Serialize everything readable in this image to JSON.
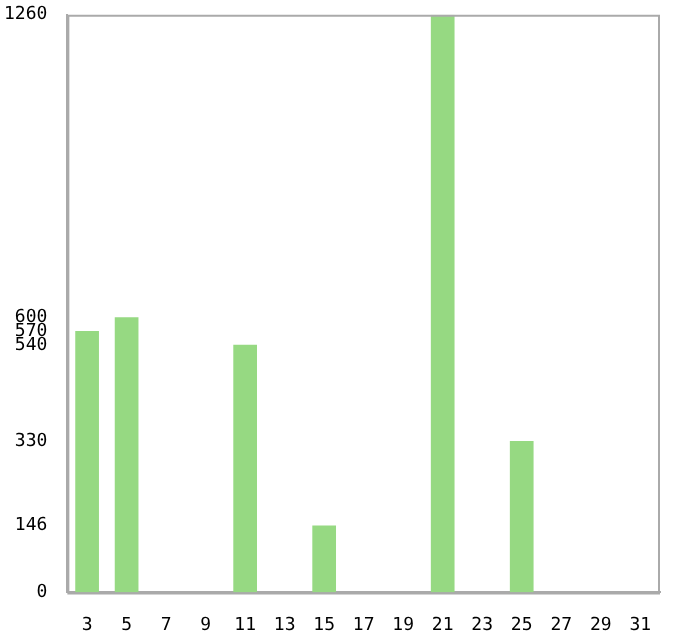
{
  "chart_data": {
    "type": "bar",
    "categories": [
      "3",
      "5",
      "7",
      "9",
      "11",
      "13",
      "15",
      "17",
      "19",
      "21",
      "23",
      "25",
      "27",
      "29",
      "31"
    ],
    "values": [
      570,
      600,
      0,
      0,
      540,
      0,
      146,
      0,
      0,
      1260,
      0,
      330,
      0,
      0,
      0
    ],
    "color": "#96d982",
    "ylim": [
      0,
      1260
    ],
    "yticks": [
      0,
      146,
      330,
      540,
      570,
      600,
      1260
    ],
    "grid": false,
    "legend": false
  }
}
